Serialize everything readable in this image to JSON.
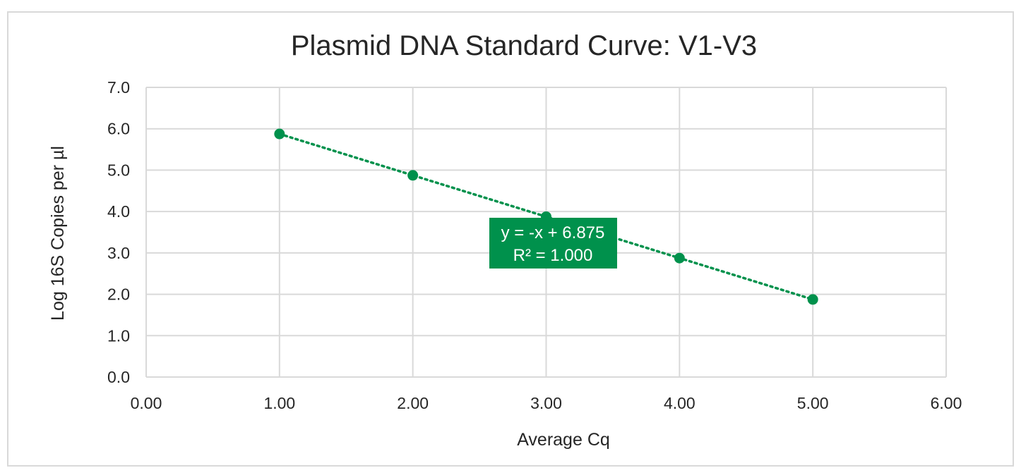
{
  "chart_data": {
    "type": "scatter",
    "title": "Plasmid DNA Standard Curve: V1-V3",
    "xlabel": "Average Cq",
    "ylabel": "Log 16S Copies per µl",
    "xlim": [
      0,
      6
    ],
    "ylim": [
      0,
      7
    ],
    "x_ticks": [
      "0.00",
      "1.00",
      "2.00",
      "3.00",
      "4.00",
      "5.00",
      "6.00"
    ],
    "y_ticks": [
      "0.0",
      "1.0",
      "2.0",
      "3.0",
      "4.0",
      "5.0",
      "6.0",
      "7.0"
    ],
    "grid": true,
    "legend": "none",
    "series": [
      {
        "x": [
          1,
          2,
          3,
          4,
          5
        ],
        "values": [
          5.875,
          4.875,
          3.875,
          2.875,
          1.875
        ]
      }
    ],
    "trendline": {
      "style": "dotted linear",
      "slope": -1,
      "intercept": 6.875
    },
    "annotation": {
      "line1": "y =  -x + 6.875",
      "line2": "R² = 1.000"
    },
    "colors": {
      "series": "#00914c",
      "grid": "#d9d9d9",
      "text": "#262626",
      "frame": "#d9d9d9"
    }
  }
}
